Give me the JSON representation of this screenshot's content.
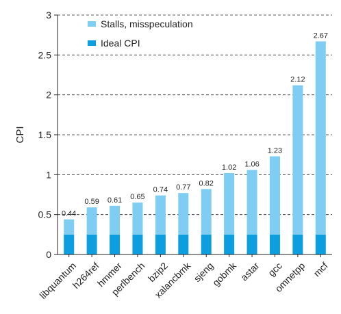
{
  "chart_data": {
    "type": "bar",
    "stacked": true,
    "categories": [
      "libquantum",
      "h264ref",
      "hmmer",
      "perlbench",
      "bzip2",
      "xalancbmk",
      "sjeng",
      "gobmk",
      "astar",
      "gcc",
      "omnetpp",
      "mcf"
    ],
    "series": [
      {
        "name": "Ideal CPI",
        "values": [
          0.25,
          0.25,
          0.25,
          0.25,
          0.25,
          0.25,
          0.25,
          0.25,
          0.25,
          0.25,
          0.25,
          0.25
        ],
        "color": "#0d9ee0"
      },
      {
        "name": "Stalls, misspeculation",
        "values": [
          0.19,
          0.34,
          0.36,
          0.4,
          0.49,
          0.52,
          0.57,
          0.77,
          0.81,
          0.98,
          1.87,
          2.42
        ],
        "color": "#7fcdf2"
      }
    ],
    "totals": [
      0.44,
      0.59,
      0.61,
      0.65,
      0.74,
      0.77,
      0.82,
      1.02,
      1.06,
      1.23,
      2.12,
      2.67
    ],
    "total_labels": [
      "0.44",
      "0.59",
      "0.61",
      "0.65",
      "0.74",
      "0.77",
      "0.82",
      "1.02",
      "1.06",
      "1.23",
      "2.12",
      "2.67"
    ],
    "ylabel": "CPI",
    "xlabel": "",
    "ylim": [
      0,
      3
    ],
    "yticks": [
      "0",
      "0.5",
      "1",
      "1.5",
      "2",
      "2.5",
      "3"
    ],
    "grid": "horizontal dashed",
    "legend_position": "top-left",
    "legend_order": [
      "Stalls, misspeculation",
      "Ideal CPI"
    ]
  }
}
